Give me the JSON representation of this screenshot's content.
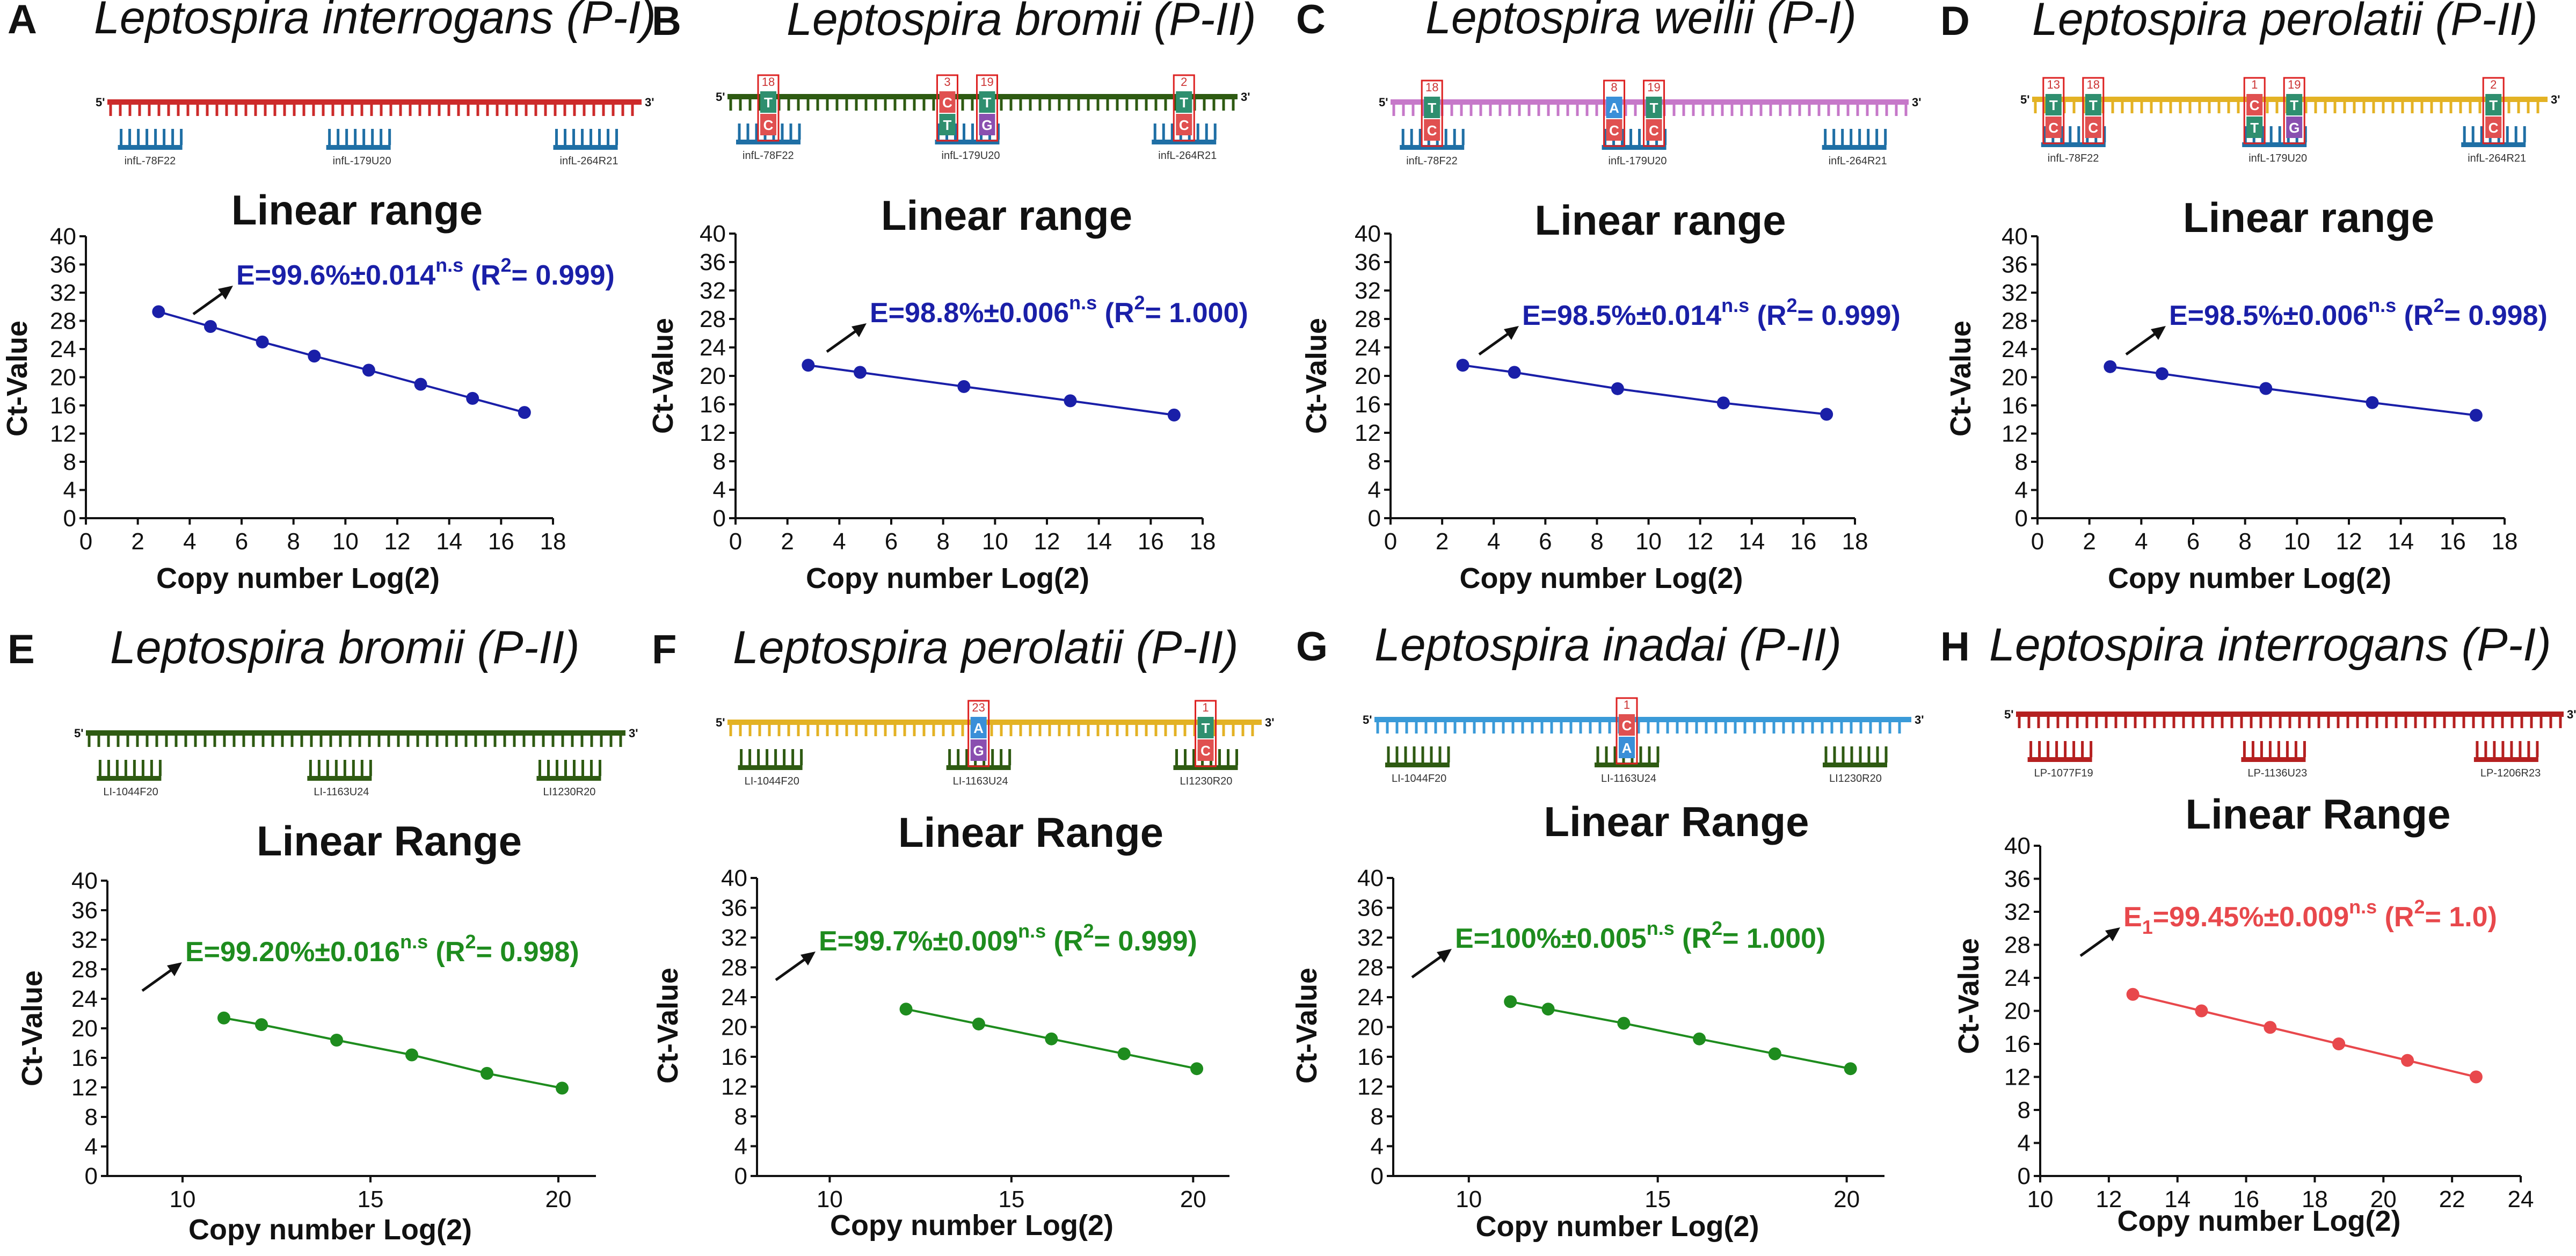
{
  "chart_data": [
    {
      "type": "scatter",
      "panel": "A",
      "title": "Leptospira interrogans (P-I)",
      "chart_title": "Linear range",
      "xlabel": "Copy number Log(2)",
      "ylabel": "Ct-Value",
      "xlim": [
        0,
        18
      ],
      "ylim": [
        0,
        40
      ],
      "xticks": [
        0,
        2,
        4,
        6,
        8,
        10,
        12,
        14,
        16,
        18
      ],
      "yticks": [
        0,
        4,
        8,
        12,
        16,
        20,
        24,
        28,
        32,
        36,
        40
      ],
      "x": [
        2.8,
        4.8,
        6.8,
        8.8,
        10.9,
        12.9,
        14.9,
        16.9
      ],
      "y": [
        29.3,
        27.2,
        25.0,
        23.0,
        21.0,
        19.0,
        17.0,
        15.0
      ],
      "efficiency_text": "E=99.6%±0.014",
      "efficiency_sup": "n.s",
      "r2_prefix": " (R",
      "r2_sup": "2",
      "r2_suffix": "= 0.999)",
      "color": "#1a1fa8",
      "text_color": "#1a1fa8",
      "diagram": {
        "strand_color": "#cc2a2a",
        "end5": "5'",
        "end3": "3'",
        "primers": [
          {
            "name": "infL-78F22",
            "color": "#1f6fa5",
            "mismatches": []
          },
          {
            "name": "infL-179U20",
            "color": "#1f6fa5",
            "mismatches": []
          },
          {
            "name": "infL-264R21",
            "color": "#1f6fa5",
            "mismatches": []
          }
        ]
      }
    },
    {
      "type": "scatter",
      "panel": "B",
      "title": "Leptospira bromii (P-II)",
      "chart_title": "Linear range",
      "xlabel": "Copy number Log(2)",
      "ylabel": "Ct-Value",
      "xlim": [
        0,
        18
      ],
      "ylim": [
        0,
        40
      ],
      "xticks": [
        0,
        2,
        4,
        6,
        8,
        10,
        12,
        14,
        16,
        18
      ],
      "yticks": [
        0,
        4,
        8,
        12,
        16,
        20,
        24,
        28,
        32,
        36,
        40
      ],
      "x": [
        2.8,
        4.8,
        8.8,
        12.9,
        16.9
      ],
      "y": [
        21.5,
        20.5,
        18.5,
        16.5,
        14.5
      ],
      "efficiency_text": "E=98.8%±0.006",
      "efficiency_sup": "n.s",
      "r2_prefix": " (R",
      "r2_sup": "2",
      "r2_suffix": "= 1.000)",
      "color": "#1a1fa8",
      "text_color": "#1a1fa8",
      "diagram": {
        "strand_color": "#2e5a12",
        "end5": "5'",
        "end3": "3'",
        "primers": [
          {
            "name": "infL-78F22",
            "color": "#1f6fa5",
            "mismatches": [
              {
                "num": "18",
                "top": "T",
                "bottom": "C",
                "top_color": "#2f8f6f",
                "bottom_color": "#e05050"
              }
            ]
          },
          {
            "name": "infL-179U20",
            "color": "#1f6fa5",
            "mismatches": [
              {
                "num": "3",
                "top": "C",
                "bottom": "T",
                "top_color": "#e05050",
                "bottom_color": "#2f8f6f"
              },
              {
                "num": "19",
                "top": "T",
                "bottom": "G",
                "top_color": "#2f8f6f",
                "bottom_color": "#8a4fb0"
              }
            ]
          },
          {
            "name": "infL-264R21",
            "color": "#1f6fa5",
            "mismatches": [
              {
                "num": "2",
                "top": "T",
                "bottom": "C",
                "top_color": "#2f8f6f",
                "bottom_color": "#e05050"
              }
            ]
          }
        ]
      }
    },
    {
      "type": "scatter",
      "panel": "C",
      "title": "Leptospira weilii (P-I)",
      "chart_title": "Linear range",
      "xlabel": "Copy number Log(2)",
      "ylabel": "Ct-Value",
      "xlim": [
        0,
        18
      ],
      "ylim": [
        0,
        40
      ],
      "xticks": [
        0,
        2,
        4,
        6,
        8,
        10,
        12,
        14,
        16,
        18
      ],
      "yticks": [
        0,
        4,
        8,
        12,
        16,
        20,
        24,
        28,
        32,
        36,
        40
      ],
      "x": [
        2.8,
        4.8,
        8.8,
        12.9,
        16.9
      ],
      "y": [
        21.5,
        20.5,
        18.2,
        16.2,
        14.6
      ],
      "efficiency_text": "E=98.5%±0.014",
      "efficiency_sup": "n.s",
      "r2_prefix": " (R",
      "r2_sup": "2",
      "r2_suffix": "= 0.999)",
      "color": "#1a1fa8",
      "text_color": "#1a1fa8",
      "diagram": {
        "strand_color": "#c678c9",
        "end5": "5'",
        "end3": "3'",
        "primers": [
          {
            "name": "infL-78F22",
            "color": "#1f6fa5",
            "mismatches": [
              {
                "num": "18",
                "top": "T",
                "bottom": "C",
                "top_color": "#2f8f6f",
                "bottom_color": "#e05050"
              }
            ]
          },
          {
            "name": "infL-179U20",
            "color": "#1f6fa5",
            "mismatches": [
              {
                "num": "8",
                "top": "A",
                "bottom": "C",
                "top_color": "#3a8fd8",
                "bottom_color": "#e05050"
              },
              {
                "num": "19",
                "top": "T",
                "bottom": "C",
                "top_color": "#2f8f6f",
                "bottom_color": "#e05050"
              }
            ]
          },
          {
            "name": "infL-264R21",
            "color": "#1f6fa5",
            "mismatches": []
          }
        ]
      }
    },
    {
      "type": "scatter",
      "panel": "D",
      "title": "Leptospira perolatii (P-II)",
      "chart_title": "Linear range",
      "xlabel": "Copy number Log(2)",
      "ylabel": "Ct-Value",
      "xlim": [
        0,
        18
      ],
      "ylim": [
        0,
        40
      ],
      "xticks": [
        0,
        2,
        4,
        6,
        8,
        10,
        12,
        14,
        16,
        18
      ],
      "yticks": [
        0,
        4,
        8,
        12,
        16,
        20,
        24,
        28,
        32,
        36,
        40
      ],
      "x": [
        2.8,
        4.8,
        8.8,
        12.9,
        16.9
      ],
      "y": [
        21.5,
        20.5,
        18.4,
        16.4,
        14.6
      ],
      "efficiency_text": "E=98.5%±0.006",
      "efficiency_sup": "n.s",
      "r2_prefix": " (R",
      "r2_sup": "2",
      "r2_suffix": "= 0.998)",
      "color": "#1a1fa8",
      "text_color": "#1a1fa8",
      "diagram": {
        "strand_color": "#e3b224",
        "end5": "5'",
        "end3": "3'",
        "primers": [
          {
            "name": "infL-78F22",
            "color": "#1f6fa5",
            "mismatches": [
              {
                "num": "13",
                "top": "T",
                "bottom": "C",
                "top_color": "#2f8f6f",
                "bottom_color": "#e05050"
              },
              {
                "num": "18",
                "top": "T",
                "bottom": "C",
                "top_color": "#2f8f6f",
                "bottom_color": "#e05050"
              }
            ]
          },
          {
            "name": "infL-179U20",
            "color": "#1f6fa5",
            "mismatches": [
              {
                "num": "1",
                "top": "C",
                "bottom": "T",
                "top_color": "#e05050",
                "bottom_color": "#2f8f6f"
              },
              {
                "num": "19",
                "top": "T",
                "bottom": "G",
                "top_color": "#2f8f6f",
                "bottom_color": "#8a4fb0"
              }
            ]
          },
          {
            "name": "infL-264R21",
            "color": "#1f6fa5",
            "mismatches": [
              {
                "num": "2",
                "top": "T",
                "bottom": "C",
                "top_color": "#2f8f6f",
                "bottom_color": "#e05050"
              }
            ]
          }
        ]
      }
    },
    {
      "type": "scatter",
      "panel": "E",
      "title": "Leptospira bromii (P-II)",
      "chart_title": "Linear Range",
      "xlabel": "Copy number Log(2)",
      "ylabel": "Ct-Value",
      "xlim": [
        8,
        21
      ],
      "ylim": [
        0,
        40
      ],
      "xticks": [
        10,
        15,
        20
      ],
      "yticks": [
        0,
        4,
        8,
        12,
        16,
        20,
        24,
        28,
        32,
        36,
        40
      ],
      "x": [
        11.1,
        12.1,
        14.1,
        16.1,
        18.1,
        20.1
      ],
      "y": [
        21.4,
        20.5,
        18.4,
        16.4,
        13.9,
        11.9
      ],
      "efficiency_text": "E=99.20%±0.016",
      "efficiency_sup": "n.s",
      "r2_prefix": " (R",
      "r2_sup": "2",
      "r2_suffix": "= 0.998)",
      "color": "#1e8c1e",
      "text_color": "#1e8c1e",
      "diagram": {
        "strand_color": "#2e5a12",
        "end5": "5'",
        "end3": "3'",
        "primers": [
          {
            "name": "LI-1044F20",
            "color": "#2e5a12",
            "mismatches": []
          },
          {
            "name": "LI-1163U24",
            "color": "#2e5a12",
            "mismatches": []
          },
          {
            "name": "LI1230R20",
            "color": "#2e5a12",
            "mismatches": []
          }
        ]
      }
    },
    {
      "type": "scatter",
      "panel": "F",
      "title": "Leptospira perolatii (P-II)",
      "chart_title": "Linear Range",
      "xlabel": "Copy number Log(2)",
      "ylabel": "Ct-Value",
      "xlim": [
        8,
        21
      ],
      "ylim": [
        0,
        40
      ],
      "xticks": [
        10,
        15,
        20
      ],
      "yticks": [
        0,
        4,
        8,
        12,
        16,
        20,
        24,
        28,
        32,
        36,
        40
      ],
      "x": [
        12.1,
        14.1,
        16.1,
        18.1,
        20.1
      ],
      "y": [
        22.4,
        20.4,
        18.4,
        16.4,
        14.4
      ],
      "efficiency_text": "E=99.7%±0.009",
      "efficiency_sup": "n.s",
      "r2_prefix": " (R",
      "r2_sup": "2",
      "r2_suffix": "= 0.999)",
      "color": "#1e8c1e",
      "text_color": "#1e8c1e",
      "diagram": {
        "strand_color": "#e3b224",
        "end5": "5'",
        "end3": "3'",
        "primers": [
          {
            "name": "LI-1044F20",
            "color": "#2e5a12",
            "mismatches": []
          },
          {
            "name": "LI-1163U24",
            "color": "#2e5a12",
            "mismatches": [
              {
                "num": "23",
                "top": "A",
                "bottom": "G",
                "top_color": "#3a8fd8",
                "bottom_color": "#8a4fb0"
              }
            ]
          },
          {
            "name": "LI1230R20",
            "color": "#2e5a12",
            "mismatches": [
              {
                "num": "1",
                "top": "T",
                "bottom": "C",
                "top_color": "#2f8f6f",
                "bottom_color": "#e05050"
              }
            ]
          }
        ]
      }
    },
    {
      "type": "scatter",
      "panel": "G",
      "title": "Leptospira inadai (P-II)",
      "chart_title": "Linear Range",
      "xlabel": "Copy number Log(2)",
      "ylabel": "Ct-Value",
      "xlim": [
        8,
        21
      ],
      "ylim": [
        0,
        40
      ],
      "xticks": [
        10,
        15,
        20
      ],
      "yticks": [
        0,
        4,
        8,
        12,
        16,
        20,
        24,
        28,
        32,
        36,
        40
      ],
      "x": [
        11.1,
        12.1,
        14.1,
        16.1,
        18.1,
        20.1
      ],
      "y": [
        23.4,
        22.4,
        20.5,
        18.4,
        16.4,
        14.4
      ],
      "efficiency_text": "E=100%±0.005",
      "efficiency_sup": "n.s",
      "r2_prefix": " (R",
      "r2_sup": "2",
      "r2_suffix": "= 1.000)",
      "color": "#1e8c1e",
      "text_color": "#1e8c1e",
      "diagram": {
        "strand_color": "#3a9ad8",
        "end5": "5'",
        "end3": "3'",
        "primers": [
          {
            "name": "LI-1044F20",
            "color": "#2e5a12",
            "mismatches": []
          },
          {
            "name": "LI-1163U24",
            "color": "#2e5a12",
            "mismatches": [
              {
                "num": "1",
                "top": "C",
                "bottom": "A",
                "top_color": "#e05050",
                "bottom_color": "#3a8fd8"
              }
            ]
          },
          {
            "name": "LI1230R20",
            "color": "#2e5a12",
            "mismatches": []
          }
        ]
      }
    },
    {
      "type": "scatter",
      "panel": "H",
      "title": "Leptospira interrogans (P-I)",
      "chart_title": "Linear Range",
      "xlabel": "Copy number Log(2)",
      "ylabel": "Ct-Value",
      "xlim": [
        10,
        24
      ],
      "ylim": [
        0,
        40
      ],
      "xticks": [
        10,
        12,
        14,
        16,
        18,
        20,
        22,
        24
      ],
      "yticks": [
        0,
        4,
        8,
        12,
        16,
        20,
        24,
        28,
        32,
        36,
        40
      ],
      "x": [
        12.7,
        14.7,
        16.7,
        18.7,
        20.7,
        22.7
      ],
      "y": [
        22.0,
        20.0,
        18.0,
        16.0,
        14.0,
        12.0
      ],
      "efficiency_text": "E",
      "efficiency_sub": "1",
      "efficiency_text2": "=99.45%±0.009",
      "efficiency_sup": "n.s",
      "r2_prefix": " (R",
      "r2_sup": "2",
      "r2_suffix": "= 1.0)",
      "color": "#e8484c",
      "text_color": "#e8484c",
      "diagram": {
        "strand_color": "#b52020",
        "end5": "5'",
        "end3": "3'",
        "primers": [
          {
            "name": "LP-1077F19",
            "color": "#b52020",
            "mismatches": []
          },
          {
            "name": "LP-1136U23",
            "color": "#b52020",
            "mismatches": []
          },
          {
            "name": "LP-1206R23",
            "color": "#b52020",
            "mismatches": []
          }
        ]
      }
    }
  ]
}
